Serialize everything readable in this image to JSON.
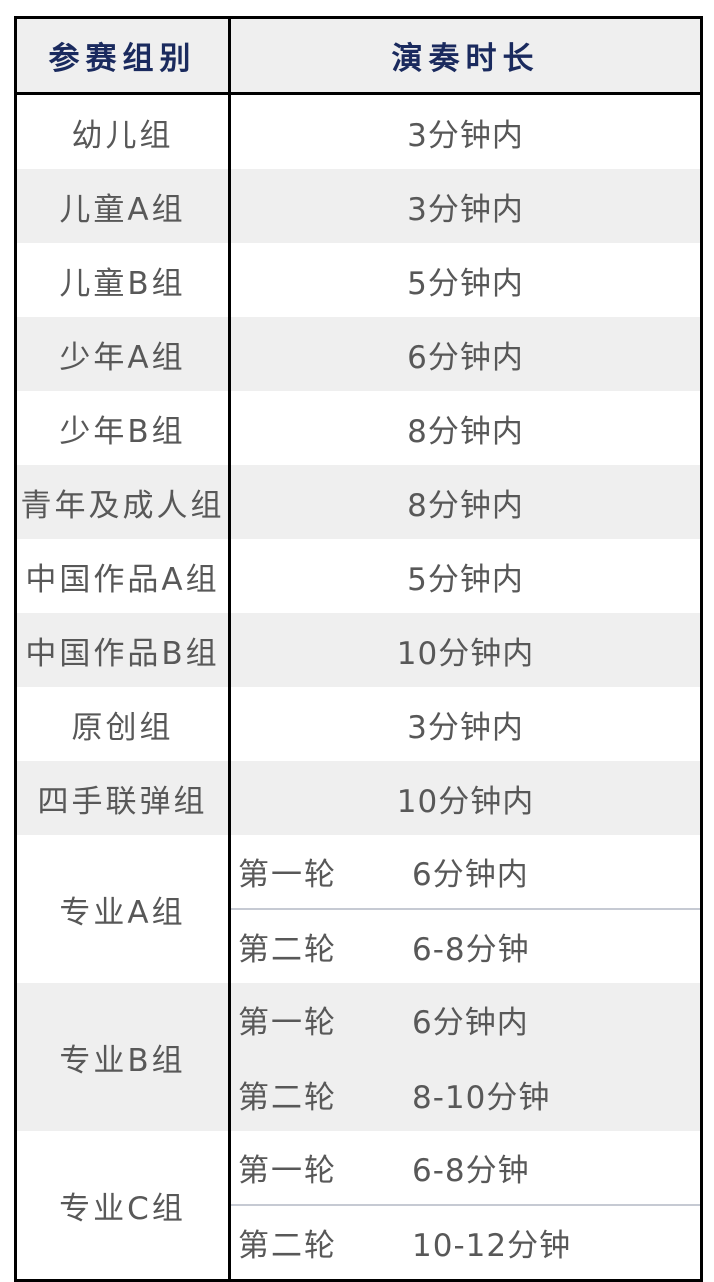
{
  "table": {
    "header": {
      "group": "参赛组别",
      "duration": "演奏时长"
    },
    "simple_rows": [
      {
        "group": "幼儿组",
        "duration": "3分钟内"
      },
      {
        "group": "儿童A组",
        "duration": "3分钟内"
      },
      {
        "group": "儿童B组",
        "duration": "5分钟内"
      },
      {
        "group": "少年A组",
        "duration": "6分钟内"
      },
      {
        "group": "少年B组",
        "duration": "8分钟内"
      },
      {
        "group": "青年及成人组",
        "duration": "8分钟内"
      },
      {
        "group": "中国作品A组",
        "duration": "5分钟内"
      },
      {
        "group": "中国作品B组",
        "duration": "10分钟内"
      },
      {
        "group": "原创组",
        "duration": "3分钟内"
      },
      {
        "group": "四手联弹组",
        "duration": "10分钟内"
      }
    ],
    "group_rows": [
      {
        "group": "专业A组",
        "rounds": [
          {
            "label": "第一轮",
            "duration": "6分钟内"
          },
          {
            "label": "第二轮",
            "duration": "6-8分钟"
          }
        ]
      },
      {
        "group": "专业B组",
        "rounds": [
          {
            "label": "第一轮",
            "duration": "6分钟内"
          },
          {
            "label": "第二轮",
            "duration": "8-10分钟"
          }
        ]
      },
      {
        "group": "专业C组",
        "rounds": [
          {
            "label": "第一轮",
            "duration": "6-8分钟"
          },
          {
            "label": "第二轮",
            "duration": "10-12分钟"
          }
        ]
      }
    ]
  },
  "colors": {
    "header_text": "#1a2a5e",
    "body_text": "#585858",
    "alt_row_bg": "#efefef",
    "grid_border": "#000000",
    "sub_divider": "#c6cad3"
  }
}
